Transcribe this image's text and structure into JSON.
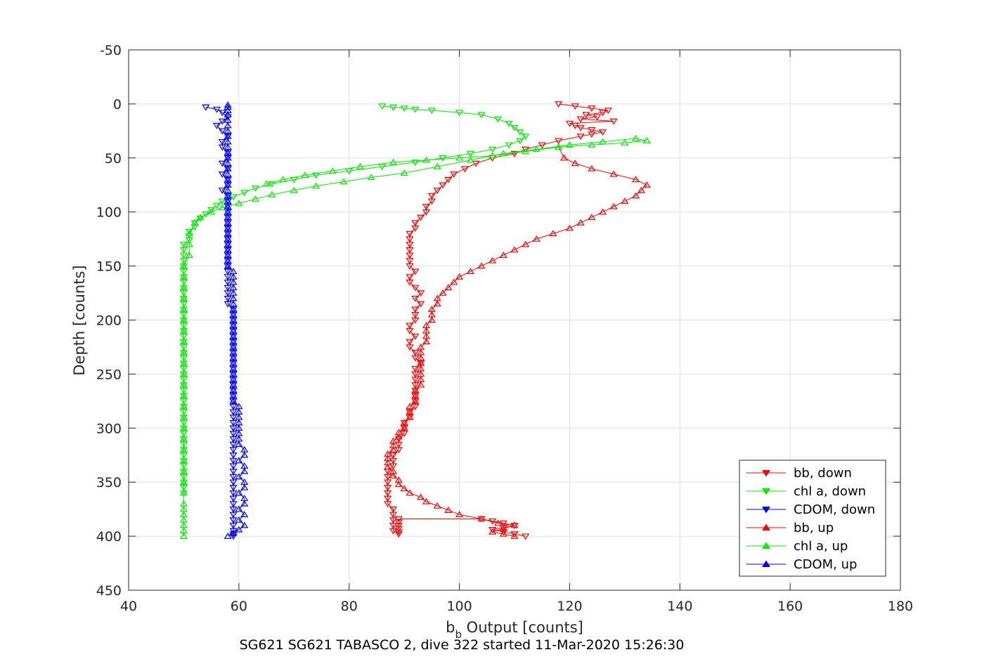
{
  "chart_data": {
    "type": "scatter",
    "title": "SG621 SG621 TABASCO 2, dive 322 started 11-Mar-2020 15:26:30",
    "xlabel_base": "b",
    "xlabel_sub": "b",
    "xlabel_rest": " Output [counts]",
    "ylabel": "Depth [counts]",
    "xlim": [
      40,
      180
    ],
    "ylim": [
      -50,
      450
    ],
    "y_reversed": true,
    "grid": true,
    "x_ticks": [
      "40",
      "60",
      "80",
      "100",
      "120",
      "140",
      "160",
      "180"
    ],
    "y_ticks": [
      "-50",
      "0",
      "50",
      "100",
      "150",
      "200",
      "250",
      "300",
      "350",
      "400",
      "450"
    ],
    "legend_placement": "bottom-right",
    "series": [
      {
        "name": "bb, down",
        "color": "#ff0000",
        "marker": "triangle-down",
        "x": [
          118,
          121,
          124,
          127,
          126,
          123,
          125,
          122,
          128,
          120,
          121,
          122,
          124,
          126,
          124,
          122,
          118,
          115,
          112,
          110,
          106,
          103,
          101,
          99,
          98,
          97,
          96,
          95,
          95,
          94,
          94,
          93,
          92,
          92,
          91,
          91,
          91,
          91,
          91,
          91,
          91,
          92,
          91,
          91,
          92,
          93,
          92,
          93,
          92,
          92,
          92,
          91,
          91,
          92,
          91,
          91,
          92,
          92,
          93,
          92,
          92,
          92,
          92,
          92,
          92,
          92,
          92,
          91,
          91,
          90,
          90,
          90,
          89,
          89,
          89,
          88,
          88,
          88,
          87,
          87,
          87,
          87,
          87,
          87,
          87,
          88,
          88,
          88,
          88,
          88,
          89,
          89,
          89,
          89,
          89,
          89,
          104,
          106,
          108,
          110,
          108,
          106,
          108,
          110,
          112,
          110,
          108,
          106,
          108,
          110
        ],
        "y": [
          0,
          2,
          4,
          6,
          8,
          10,
          12,
          14,
          16,
          18,
          20,
          22,
          24,
          26,
          28,
          30,
          34,
          38,
          42,
          46,
          50,
          55,
          60,
          65,
          70,
          75,
          80,
          85,
          90,
          95,
          100,
          105,
          110,
          115,
          120,
          125,
          130,
          135,
          140,
          145,
          150,
          155,
          160,
          165,
          170,
          175,
          180,
          185,
          190,
          195,
          200,
          205,
          210,
          215,
          220,
          225,
          230,
          235,
          240,
          245,
          250,
          255,
          260,
          265,
          270,
          275,
          280,
          285,
          290,
          295,
          300,
          305,
          310,
          315,
          320,
          325,
          330,
          335,
          340,
          345,
          350,
          355,
          360,
          365,
          370,
          375,
          380,
          385,
          390,
          395,
          398,
          396,
          393,
          390,
          387,
          384,
          384,
          386,
          388,
          390,
          392,
          394,
          396,
          398,
          400,
          398,
          396,
          394,
          392,
          390
        ]
      },
      {
        "name": "chl a, down",
        "color": "#00ee00",
        "marker": "triangle-down",
        "x": [
          86,
          88,
          90,
          92,
          95,
          100,
          104,
          107,
          109,
          110,
          111,
          112,
          111,
          109,
          106,
          102,
          97,
          92,
          86,
          80,
          74,
          70,
          66,
          63,
          61,
          59,
          57,
          56,
          55,
          54,
          53,
          52,
          52,
          51,
          51,
          51,
          50,
          50,
          50,
          50,
          50,
          50,
          50,
          50,
          50,
          50,
          50,
          50,
          50,
          50,
          50,
          50,
          50,
          50,
          50,
          50,
          50,
          50,
          50,
          50,
          50,
          50,
          50,
          50,
          50,
          50,
          50,
          50,
          50,
          50,
          50,
          50,
          50,
          50,
          50,
          50,
          50,
          50,
          50,
          50,
          50,
          50,
          50
        ],
        "y": [
          2,
          3,
          4,
          5,
          6,
          8,
          10,
          14,
          18,
          22,
          26,
          30,
          34,
          38,
          42,
          46,
          50,
          54,
          58,
          62,
          66,
          70,
          74,
          78,
          82,
          86,
          90,
          94,
          98,
          102,
          106,
          110,
          114,
          118,
          122,
          126,
          130,
          135,
          140,
          145,
          150,
          155,
          160,
          165,
          170,
          175,
          180,
          185,
          190,
          195,
          200,
          205,
          210,
          215,
          220,
          225,
          230,
          235,
          240,
          245,
          250,
          255,
          260,
          265,
          270,
          275,
          280,
          285,
          290,
          295,
          300,
          305,
          310,
          315,
          320,
          325,
          330,
          335,
          340,
          345,
          350,
          355,
          360
        ]
      },
      {
        "name": "CDOM, down",
        "color": "#0000ff",
        "marker": "triangle-down",
        "x": [
          54,
          56,
          57,
          58,
          57,
          56,
          57,
          58,
          57,
          57,
          58,
          58,
          57,
          58,
          57,
          58,
          58,
          57,
          58,
          58,
          58,
          58,
          58,
          58,
          58,
          58,
          58,
          58,
          58,
          58,
          58,
          58,
          58,
          58,
          58,
          58,
          58,
          58,
          58,
          59,
          59,
          59,
          59,
          59,
          59,
          59,
          59,
          59,
          59,
          59,
          59,
          59,
          59,
          59,
          59,
          59,
          59,
          59,
          59,
          59,
          59,
          59,
          59,
          59,
          59,
          59,
          59,
          59,
          59,
          59,
          59,
          59,
          59,
          59,
          59,
          59,
          59,
          59,
          59,
          59,
          59,
          59,
          59
        ],
        "y": [
          3,
          5,
          8,
          12,
          16,
          20,
          25,
          30,
          35,
          40,
          45,
          50,
          55,
          60,
          65,
          70,
          75,
          80,
          85,
          90,
          95,
          100,
          105,
          110,
          115,
          120,
          125,
          130,
          135,
          140,
          145,
          150,
          155,
          160,
          165,
          170,
          175,
          180,
          185,
          190,
          195,
          200,
          205,
          210,
          215,
          220,
          225,
          230,
          235,
          240,
          245,
          250,
          255,
          260,
          265,
          270,
          275,
          280,
          285,
          290,
          295,
          300,
          305,
          310,
          315,
          320,
          325,
          330,
          335,
          340,
          345,
          350,
          355,
          360,
          365,
          370,
          375,
          380,
          385,
          390,
          395,
          398,
          400
        ]
      },
      {
        "name": "bb, up",
        "color": "#ff0000",
        "marker": "triangle-up",
        "x": [
          110,
          108,
          106,
          108,
          110,
          107,
          104,
          100,
          98,
          96,
          94,
          93,
          91,
          90,
          89,
          89,
          88,
          88,
          87,
          87,
          87,
          87,
          88,
          88,
          88,
          89,
          89,
          90,
          90,
          91,
          91,
          91,
          92,
          92,
          92,
          93,
          93,
          93,
          93,
          93,
          93,
          93,
          93,
          94,
          94,
          94,
          94,
          95,
          95,
          95,
          96,
          96,
          97,
          98,
          99,
          100,
          102,
          104,
          106,
          108,
          110,
          112,
          114,
          117,
          120,
          122,
          124,
          126,
          128,
          130,
          132,
          133,
          134,
          132,
          128,
          124,
          121,
          119,
          118
        ],
        "y": [
          400,
          398,
          396,
          393,
          390,
          388,
          384,
          380,
          376,
          372,
          368,
          364,
          360,
          356,
          352,
          348,
          344,
          340,
          336,
          332,
          328,
          324,
          320,
          316,
          312,
          308,
          304,
          300,
          295,
          290,
          285,
          280,
          275,
          270,
          265,
          260,
          255,
          250,
          245,
          240,
          235,
          230,
          225,
          220,
          215,
          210,
          205,
          200,
          195,
          190,
          185,
          180,
          175,
          170,
          165,
          160,
          155,
          150,
          145,
          140,
          135,
          130,
          125,
          120,
          115,
          110,
          105,
          100,
          95,
          90,
          85,
          80,
          75,
          70,
          65,
          60,
          55,
          50,
          40
        ]
      },
      {
        "name": "chl a, up",
        "color": "#00ee00",
        "marker": "triangle-up",
        "x": [
          50,
          50,
          50,
          50,
          50,
          50,
          50,
          50,
          50,
          50,
          50,
          50,
          50,
          50,
          50,
          50,
          50,
          50,
          50,
          50,
          50,
          50,
          50,
          50,
          50,
          50,
          50,
          50,
          50,
          51,
          51,
          51,
          52,
          53,
          55,
          57,
          60,
          63,
          66,
          70,
          74,
          79,
          84,
          90,
          96,
          102,
          108,
          114,
          120,
          126,
          132,
          134,
          130,
          124,
          118,
          112,
          106,
          100,
          94,
          88,
          82,
          77,
          72,
          68,
          65
        ],
        "y": [
          400,
          395,
          390,
          385,
          380,
          375,
          370,
          360,
          350,
          340,
          330,
          320,
          310,
          300,
          290,
          280,
          270,
          260,
          250,
          240,
          230,
          220,
          210,
          200,
          190,
          180,
          170,
          160,
          150,
          140,
          130,
          120,
          110,
          105,
          100,
          96,
          92,
          88,
          84,
          80,
          76,
          72,
          68,
          64,
          58,
          52,
          46,
          42,
          38,
          35,
          32,
          34,
          36,
          38,
          40,
          44,
          48,
          50,
          52,
          54,
          58,
          62,
          66,
          70,
          74
        ]
      },
      {
        "name": "CDOM, up",
        "color": "#0000ff",
        "marker": "triangle-up",
        "x": [
          58,
          59,
          60,
          61,
          60,
          61,
          60,
          61,
          61,
          60,
          61,
          61,
          60,
          61,
          61,
          60,
          61,
          61,
          60,
          60,
          60,
          60,
          60,
          60,
          60,
          60,
          59,
          59,
          59,
          59,
          59,
          59,
          59,
          59,
          59,
          59,
          59,
          59,
          59,
          59,
          59,
          59,
          59,
          59,
          59,
          59,
          59,
          59,
          59,
          59,
          59,
          58,
          58,
          58,
          58,
          58,
          58,
          58,
          58,
          58,
          58,
          58,
          58,
          58,
          58,
          58,
          58,
          58,
          58,
          58,
          58,
          58,
          58,
          58,
          58,
          58,
          58,
          58,
          58,
          58,
          58,
          58,
          58
        ],
        "y": [
          400,
          397,
          394,
          390,
          385,
          380,
          375,
          370,
          365,
          360,
          355,
          350,
          345,
          340,
          335,
          330,
          325,
          320,
          315,
          310,
          305,
          300,
          295,
          290,
          285,
          280,
          275,
          270,
          265,
          260,
          255,
          250,
          245,
          240,
          235,
          230,
          225,
          220,
          215,
          210,
          205,
          200,
          195,
          190,
          185,
          180,
          175,
          170,
          165,
          160,
          155,
          150,
          145,
          140,
          135,
          130,
          125,
          120,
          115,
          110,
          105,
          100,
          95,
          90,
          85,
          80,
          75,
          70,
          65,
          60,
          55,
          50,
          45,
          40,
          35,
          30,
          25,
          20,
          15,
          10,
          6,
          3,
          1
        ]
      }
    ]
  }
}
